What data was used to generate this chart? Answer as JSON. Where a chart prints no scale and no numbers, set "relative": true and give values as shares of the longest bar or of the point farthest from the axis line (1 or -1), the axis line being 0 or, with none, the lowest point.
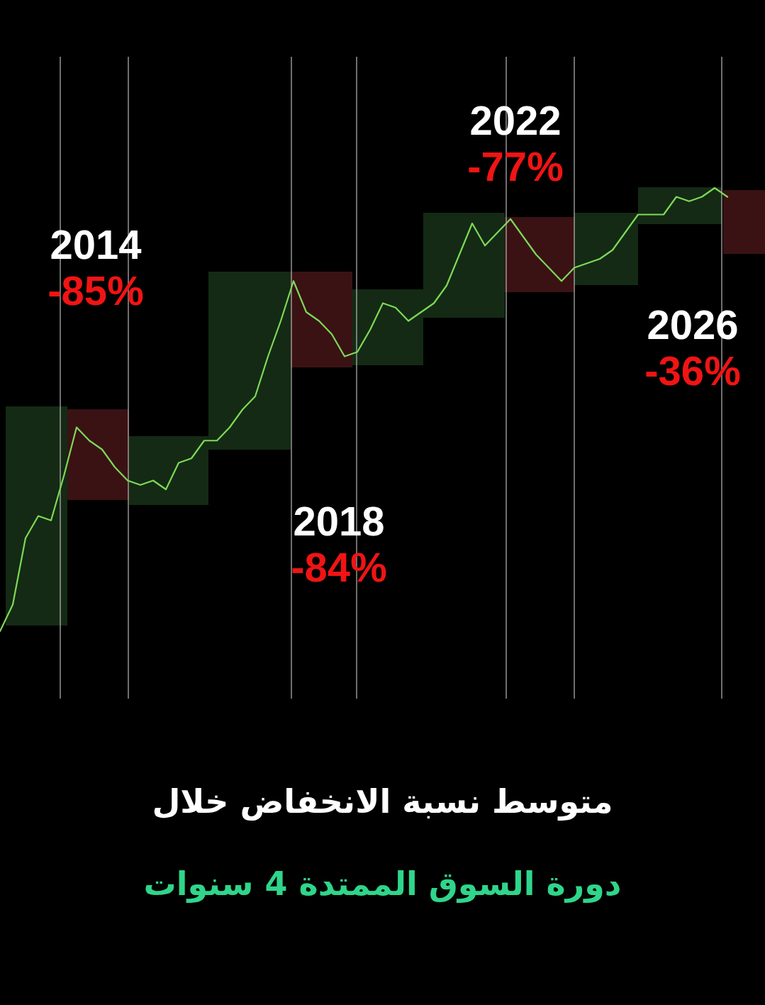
{
  "chart_data": {
    "type": "line",
    "relative": true,
    "grid": "x",
    "title": "متوسط نسبة الانخفاض خلال",
    "subtitle": "دورة السوق الممتدة 4 سنوات",
    "categories": [
      null,
      null,
      null,
      null,
      null,
      null,
      null,
      null,
      null,
      null,
      null,
      null,
      null,
      null,
      null,
      null,
      null,
      null,
      null,
      null,
      null,
      null,
      null,
      null,
      null,
      null,
      null,
      null,
      null,
      null,
      null,
      null,
      null,
      null,
      null,
      null,
      null,
      null,
      null,
      null,
      null,
      null,
      null,
      null,
      null,
      null,
      null,
      null,
      null,
      null,
      null,
      null,
      null,
      null,
      null,
      null,
      null,
      null
    ],
    "series": [
      {
        "color": "#7ed957",
        "values": [
          0,
          0.06,
          0.21,
          0.26,
          0.25,
          0.35,
          0.46,
          0.43,
          0.41,
          0.37,
          0.34,
          0.33,
          0.34,
          0.32,
          0.38,
          0.39,
          0.43,
          0.43,
          0.46,
          0.5,
          0.53,
          0.62,
          0.7,
          0.79,
          0.72,
          0.7,
          0.67,
          0.62,
          0.63,
          0.68,
          0.74,
          0.73,
          0.7,
          0.72,
          0.74,
          0.78,
          0.85,
          0.92,
          0.87,
          0.9,
          0.93,
          0.89,
          0.85,
          0.82,
          0.79,
          0.82,
          0.83,
          0.84,
          0.86,
          0.9,
          0.94,
          0.94,
          0.94,
          0.98,
          0.97,
          0.98,
          1,
          0.98
        ]
      }
    ],
    "annotations": [
      "2014",
      "-85%",
      "2022",
      "-77%",
      "2018",
      "-84%",
      "2026",
      "-36%"
    ]
  }
}
